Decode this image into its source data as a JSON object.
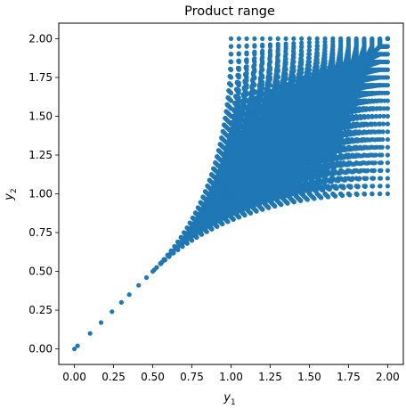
{
  "chart_data": {
    "type": "scatter",
    "title": "Product range",
    "xlabel_var": "y",
    "xlabel_sub": "1",
    "ylabel_var": "y",
    "ylabel_sub": "2",
    "xlim": [
      -0.1,
      2.1
    ],
    "ylim": [
      -0.1,
      2.1
    ],
    "xticks": [
      0.0,
      0.25,
      0.5,
      0.75,
      1.0,
      1.25,
      1.5,
      1.75,
      2.0
    ],
    "yticks": [
      0.0,
      0.25,
      0.5,
      0.75,
      1.0,
      1.25,
      1.5,
      1.75,
      2.0
    ],
    "xtick_labels": [
      "0.00",
      "0.25",
      "0.50",
      "0.75",
      "1.00",
      "1.25",
      "1.50",
      "1.75",
      "2.00"
    ],
    "ytick_labels": [
      "0.00",
      "0.25",
      "0.50",
      "0.75",
      "1.00",
      "1.25",
      "1.50",
      "1.75",
      "2.00"
    ],
    "grid": false,
    "color": "#1f77b4",
    "description_of_points": "Family of curves: diagonal points (t,t) for t in [0,1], plus for a,b in [1,2] the curves y1 = a*b*s^... forming a fan between the diagonal and the upper/right box edges",
    "generator": {
      "diagonal": [
        0.0,
        0.02,
        0.1,
        0.17,
        0.24,
        0.3,
        0.35,
        0.41,
        0.46,
        0.51,
        0.56,
        0.61,
        0.65,
        0.7,
        0.74
      ],
      "a_values": [
        1.0,
        1.05,
        1.1,
        1.15,
        1.2,
        1.25,
        1.3,
        1.35,
        1.4,
        1.45,
        1.5,
        1.55,
        1.6,
        1.65,
        1.7,
        1.75,
        1.8,
        1.85,
        1.9,
        1.95,
        2.0
      ],
      "t_steps": 21
    }
  }
}
